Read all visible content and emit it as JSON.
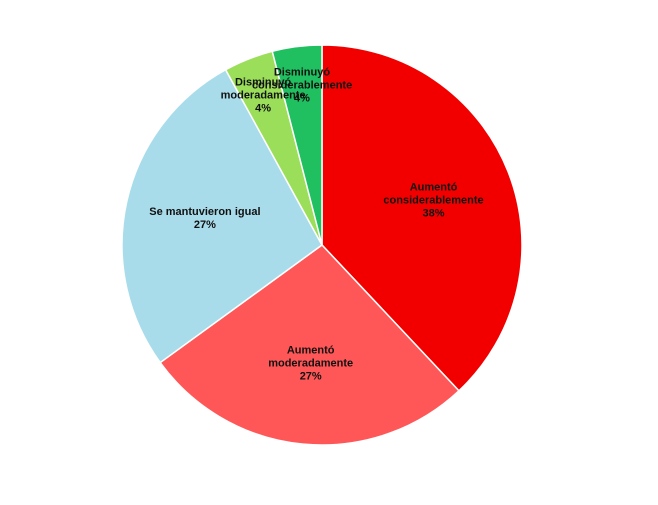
{
  "chart_data": {
    "type": "pie",
    "categories": [
      "Aumentó considerablemente",
      "Aumentó moderadamente",
      "Se mantuvieron igual",
      "Disminuyó moderadamente",
      "Disminuyó considerablemente"
    ],
    "values": [
      38,
      27,
      27,
      4,
      4
    ],
    "value_labels": [
      "38%",
      "27%",
      "27%",
      "4%",
      "4%"
    ],
    "colors": [
      "#f20000",
      "#ff5757",
      "#a9dcea",
      "#9bde5a",
      "#20c060"
    ]
  }
}
